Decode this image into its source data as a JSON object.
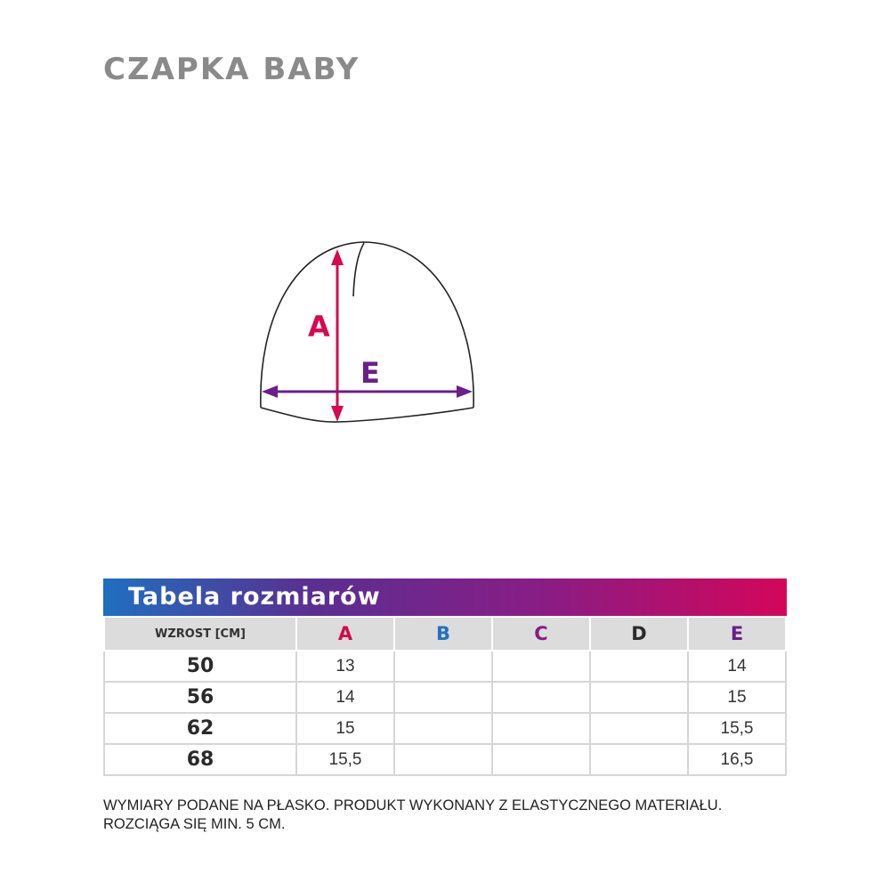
{
  "title": "CZAPKA BABY",
  "diagram": {
    "label_a": "A",
    "label_e": "E",
    "color_a": "#d6084f",
    "color_e": "#6a1f8a"
  },
  "table": {
    "heading": "Tabela rozmiarów",
    "columns": [
      "WZROST [CM]",
      "A",
      "B",
      "C",
      "D",
      "E"
    ],
    "column_colors": [
      "#333333",
      "#d6084f",
      "#1f72c4",
      "#8a1c84",
      "#2a2a2a",
      "#6a1f8a"
    ],
    "rows": [
      [
        "50",
        "13",
        "",
        "",
        "",
        "14"
      ],
      [
        "56",
        "14",
        "",
        "",
        "",
        "15"
      ],
      [
        "62",
        "15",
        "",
        "",
        "",
        "15,5"
      ],
      [
        "68",
        "15,5",
        "",
        "",
        "",
        "16,5"
      ]
    ]
  },
  "note": [
    "WYMIARY PODANE NA PŁASKO. PRODUKT WYKONANY Z ELASTYCZNEGO MATERIAŁU.",
    "ROZCIĄGA SIĘ MIN. 5 CM."
  ]
}
